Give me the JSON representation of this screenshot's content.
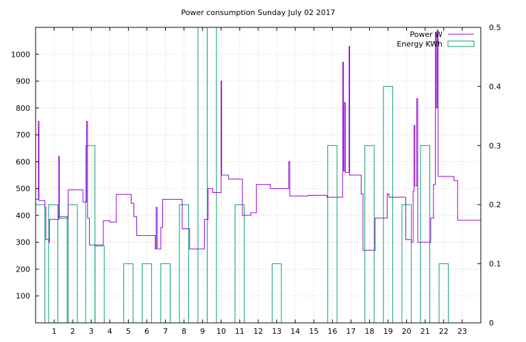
{
  "chart_data": {
    "type": "line",
    "title": "Power consumption Sunday July 02 2017",
    "xlabel": "",
    "ylabel": "",
    "xlim": [
      0,
      24
    ],
    "ylim_left": [
      0,
      1100
    ],
    "ylim_right": [
      0,
      0.5
    ],
    "x_ticks": [
      1,
      2,
      3,
      4,
      5,
      6,
      7,
      8,
      9,
      10,
      11,
      12,
      13,
      14,
      15,
      16,
      17,
      18,
      19,
      20,
      21,
      22,
      23
    ],
    "y_ticks_left": [
      100,
      200,
      300,
      400,
      500,
      600,
      700,
      800,
      900,
      1000
    ],
    "y_ticks_right": [
      0,
      0.1,
      0.2,
      0.3,
      0.4,
      0.5
    ],
    "grid": true,
    "legend_position": "top-right",
    "colors": {
      "power": "#9400d3",
      "energy": "#009e73"
    },
    "series": [
      {
        "name": "Power W",
        "axis": "left",
        "style": "step-line",
        "points": [
          [
            0.0,
            460
          ],
          [
            0.15,
            460
          ],
          [
            0.15,
            750
          ],
          [
            0.18,
            750
          ],
          [
            0.18,
            455
          ],
          [
            0.5,
            455
          ],
          [
            0.5,
            430
          ],
          [
            0.55,
            430
          ],
          [
            0.55,
            310
          ],
          [
            0.7,
            310
          ],
          [
            0.7,
            300
          ],
          [
            0.75,
            300
          ],
          [
            0.75,
            385
          ],
          [
            1.25,
            385
          ],
          [
            1.25,
            620
          ],
          [
            1.28,
            620
          ],
          [
            1.28,
            390
          ],
          [
            1.75,
            390
          ],
          [
            1.75,
            495
          ],
          [
            2.55,
            495
          ],
          [
            2.55,
            450
          ],
          [
            2.75,
            450
          ],
          [
            2.75,
            750
          ],
          [
            2.8,
            750
          ],
          [
            2.8,
            390
          ],
          [
            2.9,
            390
          ],
          [
            2.9,
            290
          ],
          [
            3.65,
            290
          ],
          [
            3.65,
            380
          ],
          [
            4.0,
            380
          ],
          [
            4.0,
            375
          ],
          [
            4.35,
            375
          ],
          [
            4.35,
            478
          ],
          [
            5.15,
            478
          ],
          [
            5.15,
            445
          ],
          [
            5.3,
            445
          ],
          [
            5.3,
            395
          ],
          [
            5.45,
            395
          ],
          [
            5.45,
            325
          ],
          [
            6.45,
            325
          ],
          [
            6.45,
            275
          ],
          [
            6.5,
            275
          ],
          [
            6.5,
            430
          ],
          [
            6.55,
            430
          ],
          [
            6.55,
            275
          ],
          [
            6.75,
            275
          ],
          [
            6.75,
            355
          ],
          [
            6.85,
            355
          ],
          [
            6.85,
            460
          ],
          [
            7.9,
            460
          ],
          [
            7.9,
            350
          ],
          [
            8.3,
            350
          ],
          [
            8.3,
            275
          ],
          [
            9.1,
            275
          ],
          [
            9.1,
            385
          ],
          [
            9.3,
            385
          ],
          [
            9.3,
            500
          ],
          [
            9.55,
            500
          ],
          [
            9.55,
            485
          ],
          [
            10.0,
            485
          ],
          [
            10.0,
            900
          ],
          [
            10.03,
            900
          ],
          [
            10.03,
            550
          ],
          [
            10.4,
            550
          ],
          [
            10.4,
            535
          ],
          [
            11.15,
            535
          ],
          [
            11.15,
            400
          ],
          [
            11.6,
            400
          ],
          [
            11.6,
            410
          ],
          [
            11.9,
            410
          ],
          [
            11.9,
            515
          ],
          [
            12.65,
            515
          ],
          [
            12.65,
            500
          ],
          [
            13.65,
            500
          ],
          [
            13.65,
            600
          ],
          [
            13.7,
            600
          ],
          [
            13.7,
            472
          ],
          [
            14.7,
            472
          ],
          [
            14.7,
            475
          ],
          [
            15.7,
            475
          ],
          [
            15.7,
            468
          ],
          [
            16.55,
            468
          ],
          [
            16.55,
            970
          ],
          [
            16.6,
            970
          ],
          [
            16.6,
            565
          ],
          [
            16.65,
            565
          ],
          [
            16.65,
            820
          ],
          [
            16.7,
            820
          ],
          [
            16.7,
            560
          ],
          [
            16.9,
            560
          ],
          [
            16.9,
            1030
          ],
          [
            16.93,
            1030
          ],
          [
            16.93,
            550
          ],
          [
            17.55,
            550
          ],
          [
            17.55,
            480
          ],
          [
            17.65,
            480
          ],
          [
            17.65,
            270
          ],
          [
            18.3,
            270
          ],
          [
            18.3,
            390
          ],
          [
            18.95,
            390
          ],
          [
            18.95,
            480
          ],
          [
            19.05,
            480
          ],
          [
            19.05,
            468
          ],
          [
            19.95,
            468
          ],
          [
            19.95,
            310
          ],
          [
            20.25,
            310
          ],
          [
            20.25,
            300
          ],
          [
            20.35,
            300
          ],
          [
            20.35,
            490
          ],
          [
            20.4,
            490
          ],
          [
            20.4,
            735
          ],
          [
            20.45,
            735
          ],
          [
            20.45,
            510
          ],
          [
            20.55,
            510
          ],
          [
            20.55,
            835
          ],
          [
            20.6,
            835
          ],
          [
            20.6,
            300
          ],
          [
            21.3,
            300
          ],
          [
            21.3,
            390
          ],
          [
            21.45,
            390
          ],
          [
            21.45,
            515
          ],
          [
            21.55,
            515
          ],
          [
            21.55,
            1080
          ],
          [
            21.6,
            1080
          ],
          [
            21.6,
            800
          ],
          [
            21.65,
            800
          ],
          [
            21.65,
            1090
          ],
          [
            21.7,
            1090
          ],
          [
            21.7,
            545
          ],
          [
            22.55,
            545
          ],
          [
            22.55,
            530
          ],
          [
            22.75,
            530
          ],
          [
            22.75,
            382
          ],
          [
            24.0,
            382
          ],
          [
            24.0,
            485
          ]
        ]
      },
      {
        "name": "Energy KWh",
        "axis": "right",
        "style": "bars",
        "bars": [
          [
            0.0,
            0.2
          ],
          [
            0.7,
            0.2
          ],
          [
            1.2,
            0.18
          ],
          [
            1.75,
            0.2
          ],
          [
            2.7,
            0.3
          ],
          [
            3.2,
            0.13
          ],
          [
            4.75,
            0.1
          ],
          [
            5.75,
            0.1
          ],
          [
            6.75,
            0.1
          ],
          [
            7.75,
            0.2
          ],
          [
            8.75,
            0.5
          ],
          [
            9.25,
            0.5
          ],
          [
            10.75,
            0.2
          ],
          [
            12.75,
            0.1
          ],
          [
            15.75,
            0.3
          ],
          [
            17.75,
            0.3
          ],
          [
            18.75,
            0.4
          ],
          [
            19.75,
            0.2
          ],
          [
            20.75,
            0.3
          ],
          [
            21.75,
            0.1
          ]
        ],
        "bar_width": 0.5
      }
    ]
  }
}
